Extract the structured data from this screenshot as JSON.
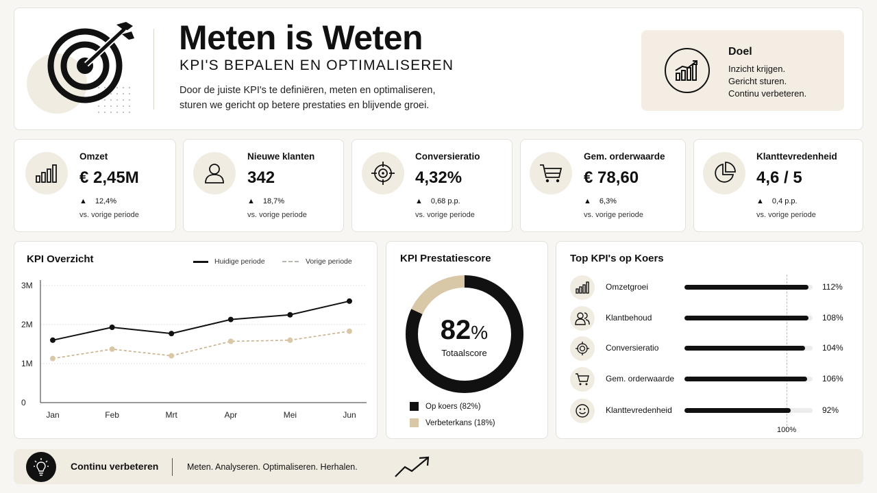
{
  "header": {
    "title": "Meten is Weten",
    "subtitle": "KPI'S BEPALEN EN OPTIMALISEREN",
    "intro_line1": "Door de juiste KPI's te definiëren, meten en optimaliseren,",
    "intro_line2": "sturen we gericht op betere prestaties en blijvende groei.",
    "goal": {
      "title": "Doel",
      "line1": "Inzicht krijgen.",
      "line2": "Gericht sturen.",
      "line3": "Continu verbeteren."
    }
  },
  "kpis": [
    {
      "label": "Omzet",
      "value": "€ 2,45M",
      "delta": "12,4%",
      "sub": "vs. vorige periode",
      "icon": "bar-chart-icon"
    },
    {
      "label": "Nieuwe klanten",
      "value": "342",
      "delta": "18,7%",
      "sub": "vs. vorige periode",
      "icon": "user-icon"
    },
    {
      "label": "Conversieratio",
      "value": "4,32%",
      "delta": "0,68 p.p.",
      "sub": "vs. vorige periode",
      "icon": "target-icon"
    },
    {
      "label": "Gem. orderwaarde",
      "value": "€ 78,60",
      "delta": "6,3%",
      "sub": "vs. vorige periode",
      "icon": "cart-icon"
    },
    {
      "label": "Klanttevredenheid",
      "value": "4,6 / 5",
      "delta": "0,4 p.p.",
      "sub": "vs. vorige periode",
      "icon": "pie-chart-icon"
    }
  ],
  "overview": {
    "title": "KPI Overzicht",
    "legend_current": "Huidige periode",
    "legend_previous": "Vorige periode"
  },
  "score": {
    "title": "KPI Prestatiescore",
    "value": "82",
    "unit": "%",
    "label": "Totaalscore",
    "legend_on": "Op koers (82%)",
    "legend_improve": "Verbeterkans (18%)",
    "on_fraction": 0.82,
    "color_on": "#111111",
    "color_improve": "#d9c8a8"
  },
  "top": {
    "title": "Top KPI's op Koers",
    "target_label": "100%",
    "items": [
      {
        "label": "Omzetgroei",
        "pct": "112%",
        "value": 112,
        "icon": "bar-chart-icon"
      },
      {
        "label": "Klantbehoud",
        "pct": "108%",
        "value": 108,
        "icon": "users-icon"
      },
      {
        "label": "Conversieratio",
        "pct": "104%",
        "value": 104,
        "icon": "target-icon"
      },
      {
        "label": "Gem. orderwaarde",
        "pct": "106%",
        "value": 106,
        "icon": "cart-icon"
      },
      {
        "label": "Klanttevredenheid",
        "pct": "92%",
        "value": 92,
        "icon": "smiley-icon"
      }
    ]
  },
  "footer": {
    "title": "Continu verbeteren",
    "text": "Meten. Analyseren. Optimaliseren. Herhalen."
  },
  "colors": {
    "accent_beige": "#f1ece2",
    "previous_line": "#c9b08a",
    "dark": "#111111"
  },
  "chart_data": {
    "type": "line",
    "categories": [
      "Jan",
      "Feb",
      "Mrt",
      "Apr",
      "Mei",
      "Jun"
    ],
    "series": [
      {
        "name": "Huidige periode",
        "values": [
          1.6,
          1.93,
          1.77,
          2.13,
          2.25,
          2.6
        ]
      },
      {
        "name": "Vorige periode",
        "values": [
          1.13,
          1.37,
          1.2,
          1.57,
          1.6,
          1.83
        ]
      }
    ],
    "yticks": [
      "0",
      "1M",
      "2M",
      "3M"
    ],
    "ylim": [
      0,
      3
    ],
    "grid": true,
    "legend": "top-right"
  }
}
